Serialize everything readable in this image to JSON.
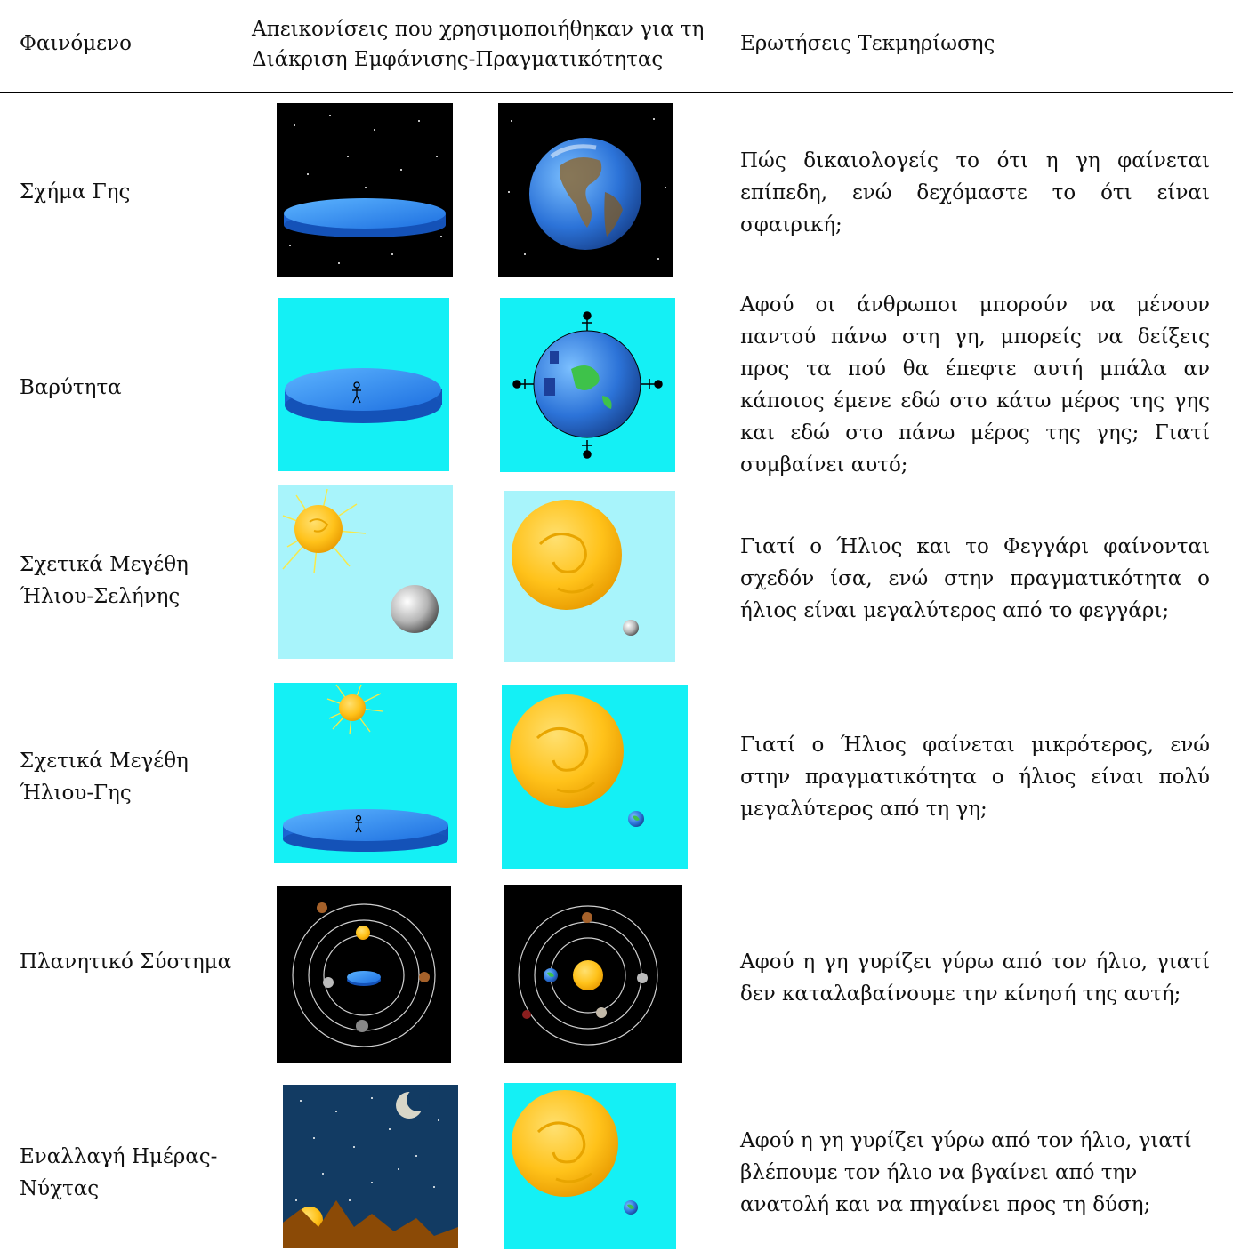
{
  "header": {
    "phenomenon": "Φαινόμενο",
    "depictions": "Απεικονίσεις που χρησιμοποιήθηκαν για τη Διάκριση Εμφάνισης-Πραγματικότητας",
    "questions": "Ερωτήσεις Τεκμηρίωσης"
  },
  "rows": [
    {
      "phenomenon": "Σχήμα Γης",
      "appearance_image": "flat-earth-in-space",
      "reality_image": "spherical-earth-in-space",
      "question": "Πώς δικαιολογείς το ότι η γη φαίνεται επίπεδη, ενώ δεχόμαστε το ότι είναι σφαιρική;"
    },
    {
      "phenomenon": "Βαρύτητα",
      "appearance_image": "flat-earth-with-person",
      "reality_image": "spherical-earth-with-people",
      "question": "Αφού οι άνθρωποι μπορούν να μένουν παντού πάνω στη γη, μπορείς να δείξεις προς τα πού θα έπεφτε αυτή μπάλα αν κάποιος έμενε εδώ στο κάτω μέρος της γης και εδώ στο πάνω μέρος της γης; Γιατί συμβαίνει αυτό;"
    },
    {
      "phenomenon": "Σχετικά Μεγέθη Ήλιου-Σελήνης",
      "appearance_image": "sun-and-moon-similar-size",
      "reality_image": "large-sun-small-moon",
      "question": "Γιατί ο Ήλιος και το Φεγγάρι φαίνονται σχεδόν ίσα, ενώ στην πραγματικότητα ο ήλιος είναι μεγαλύτερος από το φεγγάρι;"
    },
    {
      "phenomenon": "Σχετικά Μεγέθη Ήλιου-Γης",
      "appearance_image": "small-sun-over-flat-earth",
      "reality_image": "large-sun-small-earth",
      "question": "Γιατί ο Ήλιος φαίνεται μικρότερος, ενώ στην πραγματικότητα ο ήλιος είναι πολύ μεγαλύτερος από τη γη;"
    },
    {
      "phenomenon": "Πλανητικό Σύστημα",
      "appearance_image": "geocentric-system",
      "reality_image": "heliocentric-system",
      "question": "Αφού η γη γυρίζει γύρω από τον ήλιο, γιατί δεν καταλαβαίνουμε την κίνησή της αυτή;"
    },
    {
      "phenomenon": "Εναλλαγή Ημέρας-Νύχτας",
      "appearance_image": "night-sky-sunrise-over-mountains",
      "reality_image": "sun-and-earth",
      "question": "Αφού η γη γυρίζει γύρω από τον ήλιο, γιατί βλέπουμε τον ήλιο να βγαίνει από την ανατολή και να πηγαίνει προς τη δύση;"
    }
  ],
  "colors": {
    "space": "#000000",
    "sky_light": "#a8f4fb",
    "sky_cyan": "#14f0f5",
    "earth_blue": "#2f86f0",
    "sun": "#ffc21a",
    "night": "#123b63",
    "mountain": "#8b4a06"
  }
}
